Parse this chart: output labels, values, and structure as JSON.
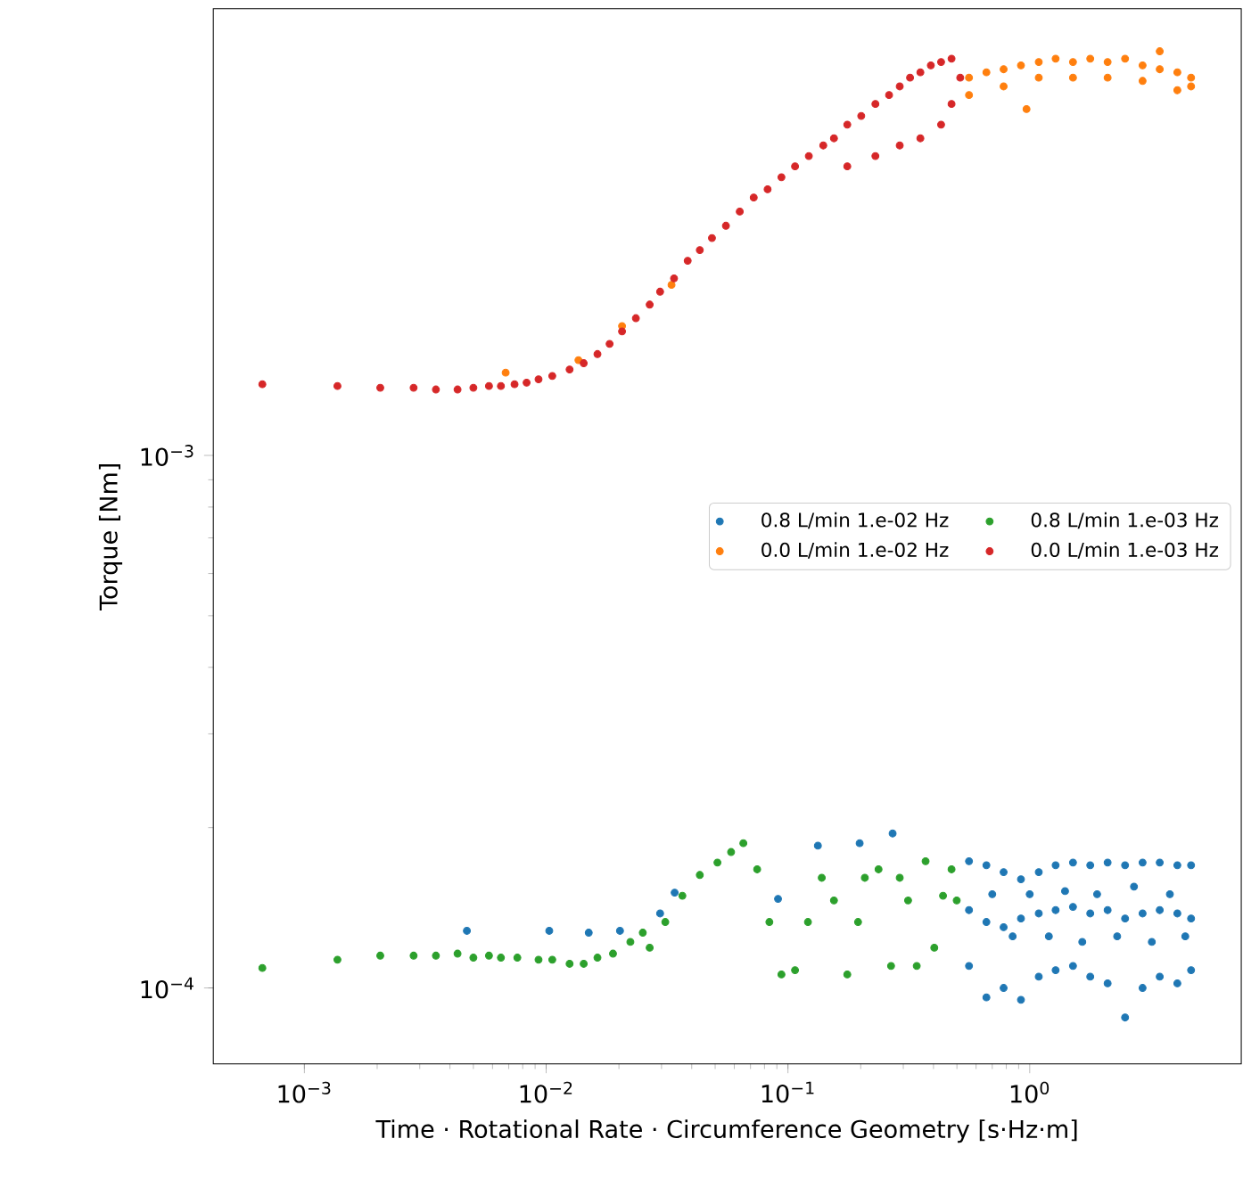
{
  "chart_data": {
    "type": "scatter",
    "xlabel": "Time · Rotational Rate · Circumference Geometry [s·Hz·m]",
    "ylabel": "Torque [Nm]",
    "log": "xy",
    "marker": "circle",
    "legend": "right",
    "xlim": [
      0.00042,
      7.5
    ],
    "ylim": [
      7.2e-05,
      0.0069
    ],
    "xticks": [
      {
        "value": 0.001,
        "label": "10$^{−3}$"
      },
      {
        "value": 0.01,
        "label": "10$^{−2}$"
      },
      {
        "value": 0.1,
        "label": "10$^{−1}$"
      },
      {
        "value": 1,
        "label": "10$^{0}$"
      }
    ],
    "yticks": [
      {
        "value": 0.0001,
        "label": "10$^{−4}$"
      },
      {
        "value": 0.001,
        "label": "10$^{−3}$"
      }
    ],
    "series": [
      {
        "name": "0.8 L/min 1.e-02 Hz",
        "color": "#1f77b4",
        "x": [
          0.0047,
          0.0103,
          0.015,
          0.0202,
          0.0296,
          0.034,
          0.091,
          0.133,
          0.198,
          0.271,
          0.561,
          0.561,
          0.561,
          0.662,
          0.662,
          0.662,
          0.78,
          0.78,
          0.78,
          0.92,
          0.92,
          0.92,
          1.09,
          1.09,
          1.09,
          1.28,
          1.28,
          1.28,
          1.51,
          1.51,
          1.51,
          1.78,
          1.78,
          1.78,
          2.1,
          2.1,
          2.1,
          2.48,
          2.48,
          2.48,
          2.93,
          2.93,
          2.93,
          3.45,
          3.45,
          3.45,
          4.08,
          4.08,
          4.08,
          4.65,
          4.65,
          4.65,
          0.7,
          1.0,
          1.4,
          1.9,
          2.7,
          3.8,
          0.85,
          1.2,
          1.65,
          2.3,
          3.2,
          4.4
        ],
        "values": [
          0.000128,
          0.000128,
          0.000127,
          0.000128,
          0.000138,
          0.000151,
          0.000147,
          0.000185,
          0.000187,
          0.000195,
          0.000173,
          0.00014,
          0.00011,
          0.00017,
          0.000133,
          9.6e-05,
          0.000165,
          0.00013,
          0.0001,
          0.00016,
          0.000135,
          9.5e-05,
          0.000165,
          0.000138,
          0.000105,
          0.00017,
          0.00014,
          0.000108,
          0.000172,
          0.000142,
          0.00011,
          0.00017,
          0.000138,
          0.000105,
          0.000172,
          0.00014,
          0.000102,
          0.00017,
          0.000135,
          8.8e-05,
          0.000172,
          0.000138,
          0.0001,
          0.000172,
          0.00014,
          0.000105,
          0.00017,
          0.000138,
          0.000102,
          0.00017,
          0.000135,
          0.000108,
          0.00015,
          0.00015,
          0.000152,
          0.00015,
          0.000155,
          0.00015,
          0.000125,
          0.000125,
          0.000122,
          0.000125,
          0.000122,
          0.000125
        ]
      },
      {
        "name": "0.0 L/min 1.e-02 Hz",
        "color": "#ff7f0e",
        "x": [
          0.0068,
          0.0136,
          0.0206,
          0.033,
          0.561,
          0.662,
          0.78,
          0.92,
          1.09,
          1.28,
          1.51,
          1.78,
          2.1,
          2.48,
          2.93,
          3.45,
          4.08,
          4.65,
          0.561,
          0.78,
          1.09,
          1.51,
          2.1,
          2.93,
          4.08,
          4.65,
          0.97,
          3.45
        ],
        "values": [
          0.00143,
          0.00151,
          0.00175,
          0.00209,
          0.00512,
          0.00524,
          0.00531,
          0.0054,
          0.00548,
          0.00556,
          0.00548,
          0.00556,
          0.00548,
          0.00556,
          0.0054,
          0.00531,
          0.00524,
          0.00512,
          0.00475,
          0.00493,
          0.00512,
          0.00512,
          0.00512,
          0.00505,
          0.00485,
          0.00493,
          0.00447,
          0.00574
        ]
      },
      {
        "name": "0.8 L/min 1.e-03 Hz",
        "color": "#2ca02c",
        "x": [
          0.00067,
          0.00137,
          0.00206,
          0.00283,
          0.0035,
          0.0043,
          0.005,
          0.0058,
          0.0065,
          0.0076,
          0.0093,
          0.0106,
          0.0125,
          0.0143,
          0.0163,
          0.0189,
          0.0223,
          0.0251,
          0.0268,
          0.0311,
          0.0366,
          0.0432,
          0.0511,
          0.0582,
          0.0654,
          0.0746,
          0.0838,
          0.094,
          0.107,
          0.121,
          0.138,
          0.155,
          0.176,
          0.195,
          0.208,
          0.237,
          0.267,
          0.29,
          0.314,
          0.341,
          0.371,
          0.403,
          0.438,
          0.475,
          0.499
        ],
        "values": [
          0.000109,
          0.000113,
          0.000115,
          0.000115,
          0.000115,
          0.000116,
          0.000114,
          0.000115,
          0.000114,
          0.000114,
          0.000113,
          0.000113,
          0.000111,
          0.000111,
          0.000114,
          0.000116,
          0.000122,
          0.000127,
          0.000119,
          0.000133,
          0.000149,
          0.000163,
          0.000172,
          0.00018,
          0.000187,
          0.000167,
          0.000133,
          0.000106,
          0.000108,
          0.000133,
          0.000161,
          0.000146,
          0.000106,
          0.000133,
          0.000161,
          0.000167,
          0.00011,
          0.000161,
          0.000146,
          0.00011,
          0.000173,
          0.000119,
          0.000149,
          0.000167,
          0.000146
        ]
      },
      {
        "name": "0.0 L/min 1.e-03 Hz",
        "color": "#d62728",
        "x": [
          0.00067,
          0.00137,
          0.00206,
          0.00283,
          0.0035,
          0.0043,
          0.005,
          0.0058,
          0.0065,
          0.0074,
          0.0083,
          0.0093,
          0.0106,
          0.0125,
          0.0143,
          0.0163,
          0.0183,
          0.0206,
          0.0235,
          0.0268,
          0.0296,
          0.0338,
          0.0385,
          0.0432,
          0.0485,
          0.0554,
          0.0632,
          0.0722,
          0.0824,
          0.094,
          0.107,
          0.122,
          0.14,
          0.155,
          0.176,
          0.201,
          0.23,
          0.262,
          0.29,
          0.32,
          0.353,
          0.39,
          0.43,
          0.475,
          0.23,
          0.29,
          0.353,
          0.43,
          0.475,
          0.176,
          0.516
        ],
        "values": [
          0.00136,
          0.00135,
          0.00134,
          0.00134,
          0.00133,
          0.00133,
          0.00134,
          0.00135,
          0.00135,
          0.00136,
          0.00137,
          0.00139,
          0.00141,
          0.00145,
          0.00149,
          0.00155,
          0.00162,
          0.00171,
          0.00181,
          0.00192,
          0.00203,
          0.00215,
          0.00232,
          0.00243,
          0.00256,
          0.0027,
          0.00287,
          0.00305,
          0.00316,
          0.00333,
          0.00349,
          0.00365,
          0.00382,
          0.00394,
          0.00418,
          0.00434,
          0.00457,
          0.00475,
          0.00493,
          0.00512,
          0.00524,
          0.0054,
          0.00548,
          0.00556,
          0.00365,
          0.00382,
          0.00394,
          0.00418,
          0.00457,
          0.00349,
          0.00512
        ]
      }
    ]
  }
}
